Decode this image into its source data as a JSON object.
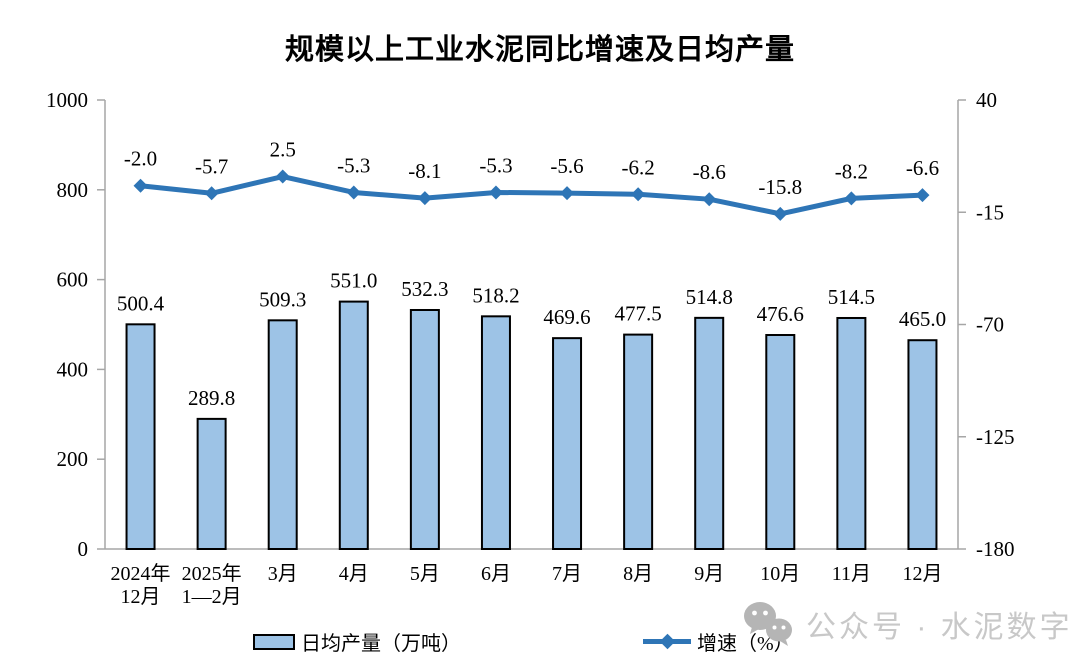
{
  "title": "规模以上工业水泥同比增速及日均产量",
  "chart_data": {
    "type": "bar",
    "subtype": "bar-line-combo",
    "title": "规模以上工业水泥同比增速及日均产量",
    "categories": [
      "2024年\n12月",
      "2025年\n1—2月",
      "3月",
      "4月",
      "5月",
      "6月",
      "7月",
      "8月",
      "9月",
      "10月",
      "11月",
      "12月"
    ],
    "series": [
      {
        "name": "日均产量（万吨）",
        "type": "bar",
        "axis": "left",
        "color": "#9DC3E6",
        "border_color": "#000000",
        "values": [
          500.4,
          289.8,
          509.3,
          551.0,
          532.3,
          518.2,
          469.6,
          477.5,
          514.8,
          476.6,
          514.5,
          465.0
        ]
      },
      {
        "name": "增速（%）",
        "type": "line",
        "axis": "right",
        "color": "#2E75B6",
        "marker": "diamond",
        "values": [
          -2.0,
          -5.7,
          2.5,
          -5.3,
          -8.1,
          -5.3,
          -5.6,
          -6.2,
          -8.6,
          -15.8,
          -8.2,
          -6.6
        ]
      }
    ],
    "left_axis": {
      "min": 0,
      "max": 1000,
      "ticks": [
        0,
        200,
        400,
        600,
        800,
        1000
      ]
    },
    "right_axis": {
      "min": -180,
      "max": 40,
      "ticks": [
        40,
        -15,
        -70,
        -125,
        -180
      ]
    },
    "grid": false,
    "data_labels": true,
    "legend_position": "bottom",
    "axis_color": "#A6A6A6",
    "text_color": "#000000",
    "background": "#FFFFFF"
  },
  "legend": {
    "bar_label": "日均产量（万吨）",
    "line_label": "增速（%）"
  },
  "watermark": {
    "icon": "wechat-official-account-icon",
    "text": "公众号 · 水泥数字",
    "color": "#C8C8C8"
  }
}
